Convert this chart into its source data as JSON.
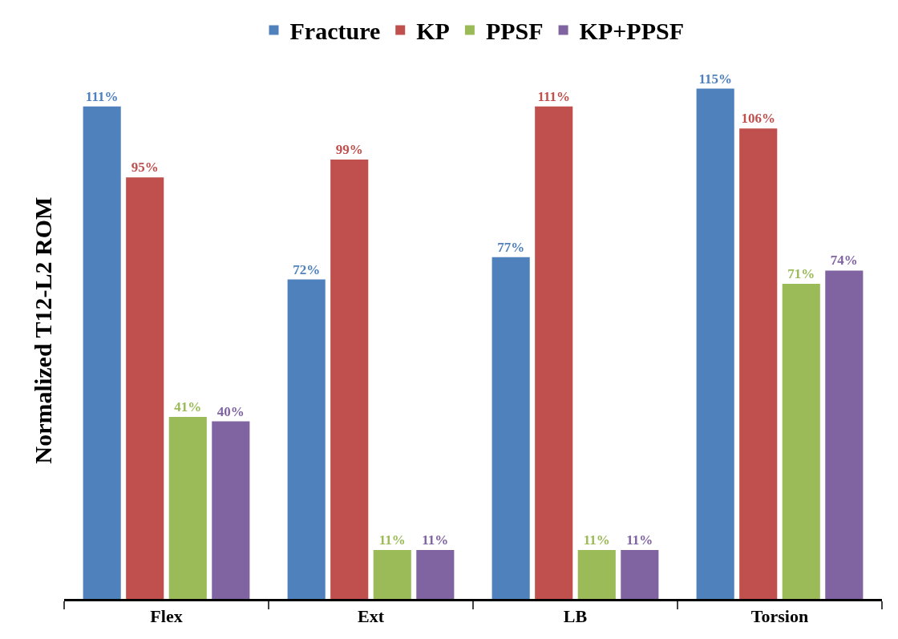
{
  "chart_data": {
    "type": "bar",
    "ylabel": "Normalized T12-L2 ROM",
    "categories": [
      "Flex",
      "Ext",
      "LB",
      "Torsion"
    ],
    "series": [
      {
        "name": "Fracture",
        "color": "#4f81bd",
        "values": [
          111,
          72,
          77,
          115
        ],
        "value_labels": [
          "111%",
          "72%",
          "77%",
          "115%"
        ]
      },
      {
        "name": "KP",
        "color": "#c0504d",
        "values": [
          95,
          99,
          111,
          106
        ],
        "value_labels": [
          "95%",
          "99%",
          "111%",
          "106%"
        ]
      },
      {
        "name": "PPSF",
        "color": "#9bbb59",
        "values": [
          41,
          11,
          11,
          71
        ],
        "value_labels": [
          "41%",
          "11%",
          "11%",
          "71%"
        ]
      },
      {
        "name": "KP+PPSF",
        "color": "#8064a2",
        "values": [
          40,
          11,
          11,
          74
        ],
        "value_labels": [
          "40%",
          "11%",
          "11%",
          "74%"
        ]
      }
    ],
    "legend": "top",
    "tick_labels": "x"
  }
}
